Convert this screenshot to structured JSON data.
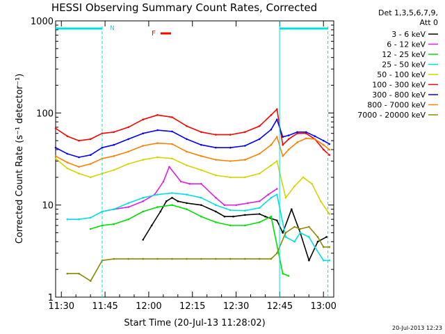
{
  "chart_data": {
    "type": "line",
    "title": "HESSI Observing Summary Count Rates, Corrected",
    "xlabel": "Start Time (20-Jul-13 11:28:02)",
    "ylabel": "Corrected Count Rate (s⁻¹ detector⁻¹)",
    "y_scale": "log",
    "ylim": [
      1,
      1000
    ],
    "xlim_minutes": [
      0,
      95.5
    ],
    "x_tick_labels": [
      "11:30",
      "11:45",
      "12:00",
      "12:15",
      "12:30",
      "12:45",
      "13:00"
    ],
    "x_tick_minutes": [
      1.97,
      16.97,
      31.97,
      46.97,
      61.97,
      76.97,
      91.97
    ],
    "y_tick_labels": [
      "1",
      "10",
      "100",
      "1000"
    ],
    "y_tick_values": [
      1,
      10,
      100,
      1000
    ],
    "legend_header": [
      "Det 1,3,5,6,7,9,",
      "Att 0"
    ],
    "legend_position": "right",
    "annotations": {
      "night_marker": "N",
      "flare_marker": "F",
      "timestamp": "20-Jul-2013 12:23"
    },
    "series": [
      {
        "name": "3 - 6 keV",
        "color": "#000000",
        "x": [
          30,
          33,
          36,
          38,
          40,
          42,
          45,
          50,
          55,
          58,
          61,
          65,
          70,
          72,
          76,
          78,
          81,
          84,
          87,
          90,
          93
        ],
        "y": [
          4.2,
          6,
          8.5,
          11,
          12,
          11,
          10.5,
          10,
          8.5,
          7.5,
          7.5,
          7.8,
          8,
          7.5,
          6.8,
          5,
          9,
          5,
          2.5,
          4,
          4.5
        ]
      },
      {
        "name": "6 - 12 keV",
        "color": "#e020e0",
        "x": [
          16,
          20,
          25,
          30,
          34,
          37,
          39,
          43,
          46,
          50,
          55,
          58,
          62,
          66,
          70,
          73,
          76
        ],
        "y": [
          8.5,
          9,
          9.5,
          11,
          13,
          18,
          26,
          18,
          17,
          17,
          12,
          10,
          10,
          10.5,
          11,
          13,
          15
        ]
      },
      {
        "name": "12 - 25 keV",
        "color": "#00e000",
        "x": [
          12,
          16,
          20,
          25,
          30,
          35,
          40,
          45,
          50,
          55,
          60,
          65,
          70,
          74,
          78,
          80
        ],
        "y": [
          5.5,
          6,
          6.2,
          7,
          8.5,
          9.5,
          10,
          9,
          7.5,
          6.5,
          6,
          6,
          6.5,
          7.5,
          1.8,
          1.7
        ]
      },
      {
        "name": "25 - 50 keV",
        "color": "#00e0e0",
        "x": [
          4,
          8,
          12,
          16,
          20,
          25,
          30,
          35,
          40,
          45,
          50,
          55,
          60,
          65,
          70,
          74,
          76,
          79,
          82,
          84,
          87,
          89,
          92,
          94
        ],
        "y": [
          7,
          7,
          7.3,
          8.5,
          9,
          10.5,
          12,
          13,
          13.5,
          13,
          12,
          10,
          8.8,
          8.7,
          9.3,
          12,
          13,
          4.5,
          4,
          5,
          4.5,
          3.5,
          2.5,
          2.5
        ]
      },
      {
        "name": "50 - 100 keV",
        "color": "#d4d400",
        "x": [
          0,
          4,
          8,
          12,
          16,
          20,
          25,
          30,
          35,
          40,
          45,
          50,
          55,
          60,
          65,
          70,
          74,
          76,
          79,
          82,
          85,
          88,
          91,
          94
        ],
        "y": [
          32,
          25,
          22,
          20,
          22,
          24,
          28,
          31,
          33,
          32,
          27,
          24,
          21,
          20,
          20,
          22,
          27,
          30,
          12,
          16,
          20,
          17,
          11,
          8
        ]
      },
      {
        "name": "100 - 300 keV",
        "color": "#ff0000",
        "x": [
          0,
          4,
          8,
          12,
          16,
          20,
          25,
          30,
          35,
          40,
          45,
          50,
          55,
          60,
          65,
          70,
          74,
          76,
          78,
          80,
          83,
          86,
          89,
          92,
          94
        ],
        "y": [
          68,
          56,
          50,
          52,
          60,
          62,
          70,
          85,
          95,
          90,
          72,
          62,
          58,
          58,
          62,
          72,
          95,
          110,
          45,
          52,
          60,
          60,
          52,
          40,
          35
        ]
      },
      {
        "name": "300 - 800 keV",
        "color": "#0000ff",
        "x": [
          0,
          4,
          8,
          12,
          16,
          20,
          25,
          30,
          35,
          40,
          45,
          50,
          55,
          60,
          65,
          70,
          74,
          76,
          78,
          80,
          83,
          86,
          89,
          92,
          94
        ],
        "y": [
          42,
          36,
          33,
          35,
          42,
          45,
          52,
          60,
          65,
          63,
          52,
          45,
          42,
          42,
          44,
          52,
          66,
          85,
          55,
          57,
          62,
          62,
          56,
          50,
          46
        ]
      },
      {
        "name": "800 - 7000 keV",
        "color": "#ff8000",
        "x": [
          0,
          4,
          8,
          12,
          16,
          20,
          25,
          30,
          35,
          40,
          45,
          50,
          55,
          60,
          65,
          70,
          74,
          76,
          78,
          80,
          83,
          86,
          89,
          92,
          94
        ],
        "y": [
          34,
          29,
          26,
          28,
          32,
          34,
          38,
          44,
          47,
          46,
          38,
          34,
          31,
          30,
          31,
          36,
          45,
          55,
          34,
          40,
          48,
          53,
          52,
          45,
          40
        ]
      },
      {
        "name": "7000 - 20000 keV",
        "color": "#8a8a00",
        "x": [
          4,
          8,
          12,
          16,
          20,
          25,
          30,
          35,
          40,
          45,
          50,
          55,
          60,
          65,
          70,
          74,
          76,
          79,
          82,
          84,
          87,
          90,
          92,
          94
        ],
        "y": [
          1.8,
          1.8,
          1.5,
          2.5,
          2.6,
          2.6,
          2.6,
          2.6,
          2.6,
          2.6,
          2.6,
          2.6,
          2.6,
          2.6,
          2.6,
          2.6,
          3,
          5,
          5.8,
          5.5,
          5.8,
          4.5,
          3.5,
          3.5
        ]
      }
    ]
  }
}
